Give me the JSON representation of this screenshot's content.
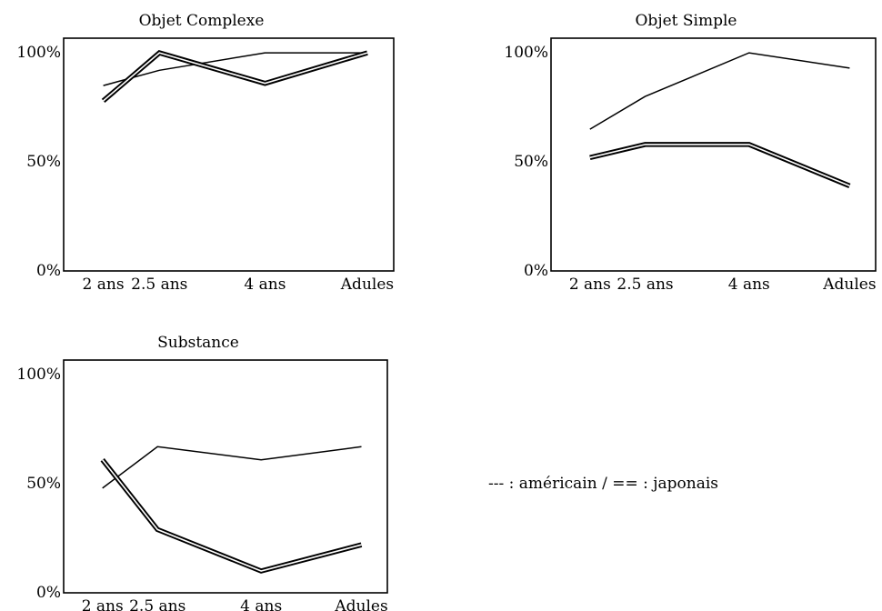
{
  "legend": {
    "text": "--- : américain   / == : japonais"
  },
  "chart_data": [
    {
      "type": "line",
      "title": "Objet Complexe",
      "categories": [
        "2 ans",
        "2.5 ans",
        "4 ans",
        "Adules"
      ],
      "yticks": [
        "0%",
        "50%",
        "100%"
      ],
      "ylim": [
        0,
        100
      ],
      "grid": false,
      "series": [
        {
          "style": "single",
          "values": [
            85,
            92,
            100,
            100
          ]
        },
        {
          "style": "double",
          "values": [
            78,
            100,
            86,
            100
          ]
        }
      ]
    },
    {
      "type": "line",
      "title": "Objet Simple",
      "categories": [
        "2 ans",
        "2.5 ans",
        "4 ans",
        "Adules"
      ],
      "yticks": [
        "0%",
        "50%",
        "100%"
      ],
      "ylim": [
        0,
        100
      ],
      "grid": false,
      "series": [
        {
          "style": "single",
          "values": [
            65,
            80,
            100,
            93
          ]
        },
        {
          "style": "double",
          "values": [
            52,
            58,
            58,
            39
          ]
        }
      ]
    },
    {
      "type": "line",
      "title": "Substance",
      "categories": [
        "2 ans",
        "2.5 ans",
        "4 ans",
        "Adules"
      ],
      "yticks": [
        "0%",
        "50%",
        "100%"
      ],
      "ylim": [
        0,
        100
      ],
      "grid": false,
      "series": [
        {
          "style": "single",
          "values": [
            48,
            67,
            61,
            67
          ]
        },
        {
          "style": "double",
          "values": [
            61,
            29,
            10,
            22
          ]
        }
      ]
    }
  ]
}
